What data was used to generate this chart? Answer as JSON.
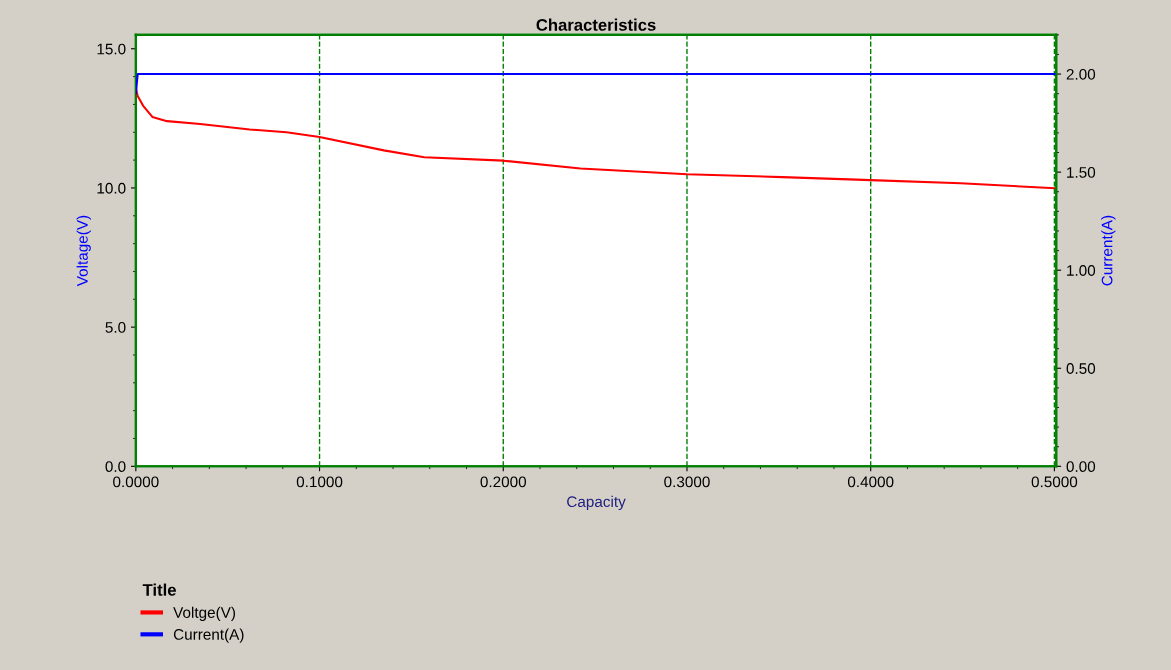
{
  "chart_data": {
    "type": "line",
    "title": "Characteristics",
    "xlabel": "Capacity",
    "ylabel": "Voltage(V)",
    "y2label": "Current(A)",
    "legend_title": "Title",
    "legend": "bottom left",
    "grid": "x",
    "line_style": "solid",
    "marker": "none",
    "xlim": [
      0,
      0.501
    ],
    "ylim": [
      0,
      15.5
    ],
    "y2lim": [
      0,
      2.2
    ],
    "xticks": [
      {
        "value": 0,
        "label": "0.0000"
      },
      {
        "value": 0.1,
        "label": "0.1000"
      },
      {
        "value": 0.2,
        "label": "0.2000"
      },
      {
        "value": 0.3,
        "label": "0.3000"
      },
      {
        "value": 0.4,
        "label": "0.4000"
      },
      {
        "value": 0.5,
        "label": "0.5000"
      }
    ],
    "yticks": [
      {
        "value": 0,
        "label": "0.0"
      },
      {
        "value": 5,
        "label": "5.0"
      },
      {
        "value": 10,
        "label": "10.0"
      },
      {
        "value": 15,
        "label": "15.0"
      }
    ],
    "y2ticks": [
      {
        "value": 0,
        "label": "0.00"
      },
      {
        "value": 0.5,
        "label": "0.50"
      },
      {
        "value": 1,
        "label": "1.00"
      },
      {
        "value": 1.5,
        "label": "1.50"
      },
      {
        "value": 2,
        "label": "2.00"
      }
    ],
    "series": [
      {
        "name": "Voltge(V)",
        "color": "#ff0000",
        "x": [
          0,
          0.001,
          0.004,
          0.009,
          0.017,
          0.035,
          0.062,
          0.082,
          0.1,
          0.135,
          0.157,
          0.2,
          0.242,
          0.3,
          0.352,
          0.4,
          0.449,
          0.5
        ],
        "values": [
          13.6,
          13.3,
          12.95,
          12.55,
          12.4,
          12.3,
          12.1,
          12.0,
          11.83,
          11.35,
          11.1,
          10.98,
          10.7,
          10.49,
          10.39,
          10.28,
          10.17,
          9.99
        ]
      },
      {
        "name": "Current(A)",
        "color": "#0000ff",
        "axis": "y2",
        "x": [
          0,
          0.001,
          0.5
        ],
        "values": [
          1.9,
          2.0,
          2.0
        ]
      }
    ]
  }
}
